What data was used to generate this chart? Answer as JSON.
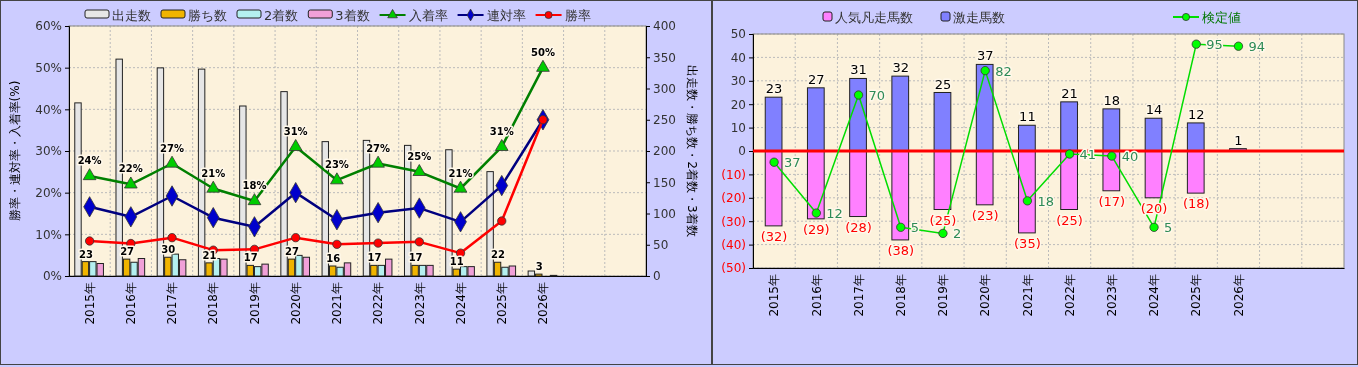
{
  "chart_data": [
    {
      "type": "bar",
      "categories": [
        "2015年",
        "2016年",
        "2017年",
        "2018年",
        "2019年",
        "2020年",
        "2021年",
        "2022年",
        "2023年",
        "2024年",
        "2025年",
        "2026年",
        null,
        null
      ],
      "ylabel": "勝率・連対率・入着率(%)",
      "y2label": "出走数・勝ち数・2着数・3着数",
      "ylim": [
        0,
        60
      ],
      "yticks": [
        {
          "value": 0,
          "label": "0%"
        },
        {
          "value": 10,
          "label": "10%"
        },
        {
          "value": 20,
          "label": "20%"
        },
        {
          "value": 30,
          "label": "30%"
        },
        {
          "value": 40,
          "label": "40%"
        },
        {
          "value": 50,
          "label": "50%"
        },
        {
          "value": 60,
          "label": "60%"
        }
      ],
      "y2lim": [
        0,
        400
      ],
      "y2ticks": [
        0,
        50,
        100,
        150,
        200,
        250,
        300,
        350,
        400
      ],
      "grid": true,
      "legend": "top",
      "series": [
        {
          "name": "出走数",
          "color": "#e6e6e6",
          "axis": "y2",
          "values": [
            277,
            347,
            333,
            331,
            272,
            295,
            215,
            217,
            209,
            202,
            167,
            8,
            null,
            null
          ]
        },
        {
          "name": "勝ち数",
          "color": "#f0b400",
          "axis": "y2",
          "values": [
            23,
            27,
            30,
            21,
            17,
            27,
            16,
            17,
            17,
            11,
            22,
            3,
            null,
            null
          ],
          "value_labels": [
            "23",
            "27",
            "30",
            "21",
            "17",
            "27",
            "16",
            "17",
            "17",
            "11",
            "22",
            "3",
            null,
            null
          ]
        },
        {
          "name": "2着数",
          "color": "#b4f0f0",
          "axis": "y2",
          "values": [
            23,
            22,
            35,
            28,
            15,
            33,
            14,
            17,
            17,
            15,
            14,
            0,
            null,
            null
          ]
        },
        {
          "name": "3着数",
          "color": "#f0a0d8",
          "axis": "y2",
          "values": [
            20,
            28,
            26,
            27,
            19,
            30,
            21,
            27,
            17,
            15,
            16,
            1,
            null,
            null
          ]
        },
        {
          "name": "入着率",
          "type": "line",
          "color": "#008000",
          "marker": "triangle",
          "values": [
            24,
            22,
            27,
            21,
            18,
            31,
            23,
            27,
            25,
            21,
            31,
            50,
            null,
            null
          ],
          "value_labels": [
            "24%",
            "22%",
            "27%",
            "21%",
            "18%",
            "31%",
            "23%",
            "27%",
            "25%",
            "21%",
            "31%",
            "50%",
            null,
            null
          ]
        },
        {
          "name": "連対率",
          "type": "line",
          "color": "#000080",
          "marker": "diamond",
          "values": [
            16.6,
            14.2,
            19.2,
            14.0,
            11.8,
            20.0,
            13.5,
            15.2,
            16.3,
            13.0,
            21.7,
            37.5,
            null,
            null
          ]
        },
        {
          "name": "勝率",
          "type": "line",
          "color": "#ff0000",
          "marker": "circle",
          "values": [
            8.4,
            7.8,
            9.2,
            6.2,
            6.4,
            9.2,
            7.6,
            7.9,
            8.2,
            5.5,
            13.2,
            37.5,
            null,
            null
          ]
        }
      ]
    },
    {
      "type": "bar",
      "stacked": true,
      "categories": [
        "2015年",
        "2016年",
        "2017年",
        "2018年",
        "2019年",
        "2020年",
        "2021年",
        "2022年",
        "2023年",
        "2024年",
        "2025年",
        "2026年",
        null,
        null
      ],
      "ylim": [
        -50,
        50
      ],
      "yticks": [
        50,
        40,
        30,
        20,
        10,
        0,
        {
          "value": -10,
          "label": "(10)"
        },
        {
          "value": -20,
          "label": "(20)"
        },
        {
          "value": -30,
          "label": "(30)"
        },
        {
          "value": -40,
          "label": "(40)"
        },
        {
          "value": -50,
          "label": "(50)"
        }
      ],
      "y2lim": [
        -15,
        100
      ],
      "grid": true,
      "legend": "top",
      "ref_lines": [
        {
          "axis": "y",
          "value": 0,
          "color": "#ff0000"
        }
      ],
      "series": [
        {
          "name": "人気凡走馬数",
          "color": "#ff80ff",
          "values": [
            -32,
            -29,
            -28,
            -38,
            -25,
            -23,
            -35,
            -25,
            -17,
            -20,
            -18,
            null,
            null,
            null
          ],
          "value_labels": [
            "(32)",
            "(29)",
            "(28)",
            "(38)",
            "(25)",
            "(23)",
            "(35)",
            "(25)",
            "(17)",
            "(20)",
            "(18)",
            null,
            null,
            null
          ]
        },
        {
          "name": "激走馬数",
          "color": "#8080ff",
          "values": [
            23,
            27,
            31,
            32,
            25,
            37,
            11,
            21,
            18,
            14,
            12,
            1,
            null,
            null
          ],
          "value_labels": [
            "23",
            "27",
            "31",
            "32",
            "25",
            "37",
            "11",
            "21",
            "18",
            "14",
            "12",
            "1",
            null,
            null
          ]
        },
        {
          "name": "検定値",
          "type": "line",
          "axis": "y2",
          "color": "#00dd00",
          "marker": "circle",
          "values": [
            37,
            12,
            70,
            5,
            2,
            82,
            18,
            41,
            40,
            5,
            95,
            94,
            null,
            null
          ],
          "value_labels": [
            "37",
            "12",
            "70",
            "5",
            "2",
            "82",
            "18",
            "41",
            "40",
            "5",
            "95",
            "94",
            null,
            null
          ]
        }
      ]
    }
  ]
}
